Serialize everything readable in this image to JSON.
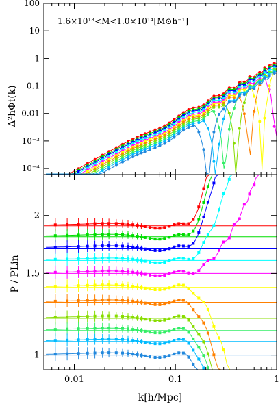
{
  "chart_data": [
    {
      "type": "scatter",
      "panel": "top",
      "annotation": "1.6×10¹³<M<1.0×10¹⁴[M⊙h⁻¹]",
      "ylabel": "Δ²hΦt(k)",
      "xscale": "log",
      "yscale": "log",
      "xlim": [
        0.005,
        1.0
      ],
      "ylim": [
        6e-05,
        100
      ],
      "ytick_labels": [
        "10⁻⁴",
        "10⁻³",
        "0.01",
        "0.1",
        "1",
        "10",
        "100"
      ],
      "ytick_values": [
        0.0001,
        0.001,
        0.01,
        0.1,
        1,
        10,
        100
      ],
      "series": [
        {
          "color": "#ff0000",
          "low_k_amp": 3.1e-05,
          "zero_crossing_k": null
        },
        {
          "color": "#00cc00",
          "low_k_amp": 2.7e-05,
          "zero_crossing_k": null
        },
        {
          "color": "#0000ff",
          "low_k_amp": 2.4e-05,
          "zero_crossing_k": null
        },
        {
          "color": "#00ffff",
          "low_k_amp": 2.1e-05,
          "zero_crossing_k": null
        },
        {
          "color": "#ff00ff",
          "low_k_amp": 1.8e-05,
          "zero_crossing_k": 0.98
        },
        {
          "color": "#ffff00",
          "low_k_amp": 1.6e-05,
          "zero_crossing_k": 0.72
        },
        {
          "color": "#ff8000",
          "low_k_amp": 1.4e-05,
          "zero_crossing_k": 0.54
        },
        {
          "color": "#88dd00",
          "low_k_amp": 1.2e-05,
          "zero_crossing_k": 0.4
        },
        {
          "color": "#33ee66",
          "low_k_amp": 1e-05,
          "zero_crossing_k": 0.31
        },
        {
          "color": "#00bbff",
          "low_k_amp": 8.5e-06,
          "zero_crossing_k": 0.25
        },
        {
          "color": "#2288dd",
          "low_k_amp": 7e-06,
          "zero_crossing_k": 0.21
        }
      ]
    },
    {
      "type": "scatter",
      "panel": "bottom",
      "xlabel": "k[h/Mpc]",
      "ylabel": "P / PLin",
      "xscale": "log",
      "yscale": "log",
      "xlim": [
        0.005,
        1.0
      ],
      "ylim": [
        0.93,
        2.45
      ],
      "xtick_labels": [
        "0.01",
        "0.1",
        "1"
      ],
      "xtick_values": [
        0.01,
        0.1,
        1
      ],
      "ytick_labels": [
        "1",
        "1.5",
        "2"
      ],
      "ytick_values": [
        1,
        1.5,
        2
      ],
      "series": [
        {
          "color": "#ff0000",
          "level": 1.9,
          "trend": 1.2
        },
        {
          "color": "#00dd00",
          "level": 1.8,
          "trend": 1.1
        },
        {
          "color": "#0000ff",
          "level": 1.7,
          "trend": 1.0
        },
        {
          "color": "#00ffff",
          "level": 1.6,
          "trend": 0.55
        },
        {
          "color": "#ff00ff",
          "level": 1.5,
          "trend": 0.25
        },
        {
          "color": "#ffff00",
          "level": 1.4,
          "trend": -0.55
        },
        {
          "color": "#ff8000",
          "level": 1.3,
          "trend": -0.75
        },
        {
          "color": "#88dd00",
          "level": 1.2,
          "trend": -0.85
        },
        {
          "color": "#33ee66",
          "level": 1.13,
          "trend": -0.9
        },
        {
          "color": "#00bbff",
          "level": 1.07,
          "trend": -0.95
        },
        {
          "color": "#2288dd",
          "level": 1.0,
          "trend": -1.0
        }
      ]
    }
  ]
}
